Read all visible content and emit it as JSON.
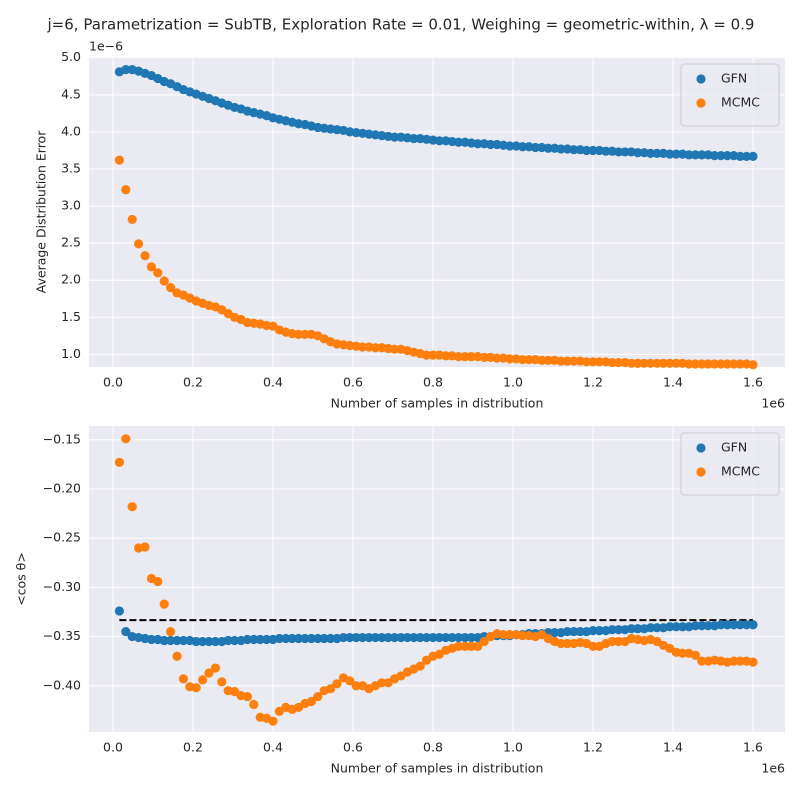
{
  "title": "j=6, Parametrization = SubTB, Exploration Rate = 0.01, Weighing = geometric-within, λ = 0.9",
  "chart_data": [
    {
      "type": "scatter",
      "xlabel": "Number of samples in distribution",
      "ylabel": "Average Distribution Error",
      "x_offset_label": "1e6",
      "y_offset_label": "1e−6",
      "xlim": [
        -0.06,
        1.68
      ],
      "ylim": [
        0.83,
        5.01
      ],
      "xticks": [
        {
          "value": 0,
          "label": "0.0"
        },
        0.2,
        0.4,
        0.6,
        0.8,
        {
          "value": 1,
          "label": "1.0"
        },
        1.2,
        1.4,
        1.6
      ],
      "yticks": [
        {
          "value": 1,
          "label": "1.0"
        },
        1.5,
        {
          "value": 2,
          "label": "2.0"
        },
        2.5,
        {
          "value": 3,
          "label": "3.0"
        },
        3.5,
        {
          "value": 4,
          "label": "4.0"
        },
        4.5,
        {
          "value": 5,
          "label": "5.0"
        }
      ],
      "grid": true,
      "legend": "upper right",
      "x": [
        0.016,
        0.032,
        0.048,
        0.064,
        0.08,
        0.096,
        0.112,
        0.128,
        0.144,
        0.16,
        0.176,
        0.192,
        0.208,
        0.224,
        0.24,
        0.256,
        0.272,
        0.288,
        0.304,
        0.32,
        0.336,
        0.352,
        0.368,
        0.384,
        0.4,
        0.416,
        0.432,
        0.448,
        0.464,
        0.48,
        0.496,
        0.512,
        0.528,
        0.544,
        0.56,
        0.576,
        0.592,
        0.608,
        0.624,
        0.64,
        0.656,
        0.672,
        0.688,
        0.704,
        0.72,
        0.736,
        0.752,
        0.768,
        0.784,
        0.8,
        0.816,
        0.832,
        0.848,
        0.864,
        0.88,
        0.896,
        0.912,
        0.928,
        0.944,
        0.96,
        0.976,
        0.992,
        1.008,
        1.024,
        1.04,
        1.056,
        1.072,
        1.088,
        1.104,
        1.12,
        1.136,
        1.152,
        1.168,
        1.184,
        1.2,
        1.216,
        1.232,
        1.248,
        1.264,
        1.28,
        1.296,
        1.312,
        1.328,
        1.344,
        1.36,
        1.376,
        1.392,
        1.408,
        1.424,
        1.44,
        1.456,
        1.472,
        1.488,
        1.504,
        1.52,
        1.536,
        1.552,
        1.568,
        1.584,
        1.6
      ],
      "series": [
        {
          "name": "GFN",
          "color": "#1f77b4",
          "values": [
            4.81,
            4.84,
            4.84,
            4.82,
            4.79,
            4.76,
            4.72,
            4.68,
            4.65,
            4.61,
            4.57,
            4.54,
            4.51,
            4.48,
            4.45,
            4.42,
            4.39,
            4.36,
            4.33,
            4.31,
            4.28,
            4.26,
            4.24,
            4.22,
            4.19,
            4.17,
            4.15,
            4.13,
            4.11,
            4.1,
            4.08,
            4.06,
            4.05,
            4.04,
            4.03,
            4.02,
            4.0,
            3.99,
            3.98,
            3.97,
            3.96,
            3.95,
            3.94,
            3.93,
            3.93,
            3.92,
            3.91,
            3.91,
            3.9,
            3.89,
            3.88,
            3.88,
            3.87,
            3.86,
            3.86,
            3.85,
            3.84,
            3.84,
            3.83,
            3.83,
            3.82,
            3.81,
            3.81,
            3.8,
            3.8,
            3.79,
            3.79,
            3.78,
            3.78,
            3.77,
            3.77,
            3.76,
            3.76,
            3.75,
            3.75,
            3.75,
            3.74,
            3.74,
            3.73,
            3.73,
            3.73,
            3.72,
            3.72,
            3.71,
            3.71,
            3.71,
            3.7,
            3.7,
            3.7,
            3.69,
            3.69,
            3.69,
            3.69,
            3.68,
            3.68,
            3.68,
            3.68,
            3.67,
            3.67,
            3.67
          ]
        },
        {
          "name": "MCMC",
          "color": "#ff7f0e",
          "values": [
            3.62,
            3.22,
            2.82,
            2.49,
            2.33,
            2.18,
            2.1,
            1.99,
            1.9,
            1.83,
            1.8,
            1.76,
            1.72,
            1.69,
            1.66,
            1.64,
            1.6,
            1.55,
            1.5,
            1.47,
            1.43,
            1.42,
            1.41,
            1.39,
            1.38,
            1.33,
            1.3,
            1.28,
            1.27,
            1.27,
            1.27,
            1.25,
            1.21,
            1.17,
            1.14,
            1.13,
            1.12,
            1.11,
            1.1,
            1.1,
            1.09,
            1.09,
            1.08,
            1.07,
            1.07,
            1.05,
            1.03,
            1.01,
            0.99,
            0.99,
            0.99,
            0.98,
            0.98,
            0.97,
            0.97,
            0.97,
            0.97,
            0.96,
            0.96,
            0.95,
            0.95,
            0.94,
            0.94,
            0.93,
            0.93,
            0.93,
            0.92,
            0.92,
            0.92,
            0.91,
            0.91,
            0.91,
            0.91,
            0.9,
            0.9,
            0.9,
            0.9,
            0.89,
            0.89,
            0.89,
            0.88,
            0.88,
            0.88,
            0.88,
            0.88,
            0.88,
            0.88,
            0.88,
            0.88,
            0.87,
            0.87,
            0.87,
            0.87,
            0.87,
            0.87,
            0.87,
            0.87,
            0.87,
            0.87,
            0.86
          ]
        }
      ]
    },
    {
      "type": "scatter",
      "xlabel": "Number of samples in distribution",
      "ylabel": "<cos θ>",
      "x_offset_label": "1e6",
      "xlim": [
        -0.06,
        1.68
      ],
      "ylim": [
        -0.447,
        -0.136
      ],
      "xticks": [
        {
          "value": 0,
          "label": "0.0"
        },
        0.2,
        0.4,
        0.6,
        0.8,
        {
          "value": 1,
          "label": "1.0"
        },
        1.2,
        1.4,
        1.6
      ],
      "yticks": [
        {
          "value": -0.4,
          "label": "−0.40"
        },
        {
          "value": -0.35,
          "label": "−0.35"
        },
        {
          "value": -0.3,
          "label": "−0.30"
        },
        {
          "value": -0.25,
          "label": "−0.25"
        },
        {
          "value": -0.2,
          "label": "−0.20"
        },
        {
          "value": -0.15,
          "label": "−0.15"
        }
      ],
      "grid": true,
      "legend": "upper right",
      "hline": {
        "value": -0.3333,
        "xrange": [
          0.016,
          1.6
        ],
        "color": "#000000",
        "style": "dashed"
      },
      "x": [
        0.016,
        0.032,
        0.048,
        0.064,
        0.08,
        0.096,
        0.112,
        0.128,
        0.144,
        0.16,
        0.176,
        0.192,
        0.208,
        0.224,
        0.24,
        0.256,
        0.272,
        0.288,
        0.304,
        0.32,
        0.336,
        0.352,
        0.368,
        0.384,
        0.4,
        0.416,
        0.432,
        0.448,
        0.464,
        0.48,
        0.496,
        0.512,
        0.528,
        0.544,
        0.56,
        0.576,
        0.592,
        0.608,
        0.624,
        0.64,
        0.656,
        0.672,
        0.688,
        0.704,
        0.72,
        0.736,
        0.752,
        0.768,
        0.784,
        0.8,
        0.816,
        0.832,
        0.848,
        0.864,
        0.88,
        0.896,
        0.912,
        0.928,
        0.944,
        0.96,
        0.976,
        0.992,
        1.008,
        1.024,
        1.04,
        1.056,
        1.072,
        1.088,
        1.104,
        1.12,
        1.136,
        1.152,
        1.168,
        1.184,
        1.2,
        1.216,
        1.232,
        1.248,
        1.264,
        1.28,
        1.296,
        1.312,
        1.328,
        1.344,
        1.36,
        1.376,
        1.392,
        1.408,
        1.424,
        1.44,
        1.456,
        1.472,
        1.488,
        1.504,
        1.52,
        1.536,
        1.552,
        1.568,
        1.584,
        1.6
      ],
      "series": [
        {
          "name": "GFN",
          "color": "#1f77b4",
          "values": [
            -0.324,
            -0.345,
            -0.35,
            -0.351,
            -0.352,
            -0.353,
            -0.353,
            -0.354,
            -0.354,
            -0.354,
            -0.354,
            -0.354,
            -0.355,
            -0.355,
            -0.355,
            -0.355,
            -0.355,
            -0.354,
            -0.354,
            -0.354,
            -0.353,
            -0.353,
            -0.353,
            -0.353,
            -0.353,
            -0.352,
            -0.352,
            -0.352,
            -0.352,
            -0.352,
            -0.352,
            -0.352,
            -0.352,
            -0.352,
            -0.352,
            -0.351,
            -0.351,
            -0.351,
            -0.351,
            -0.351,
            -0.351,
            -0.351,
            -0.351,
            -0.351,
            -0.351,
            -0.351,
            -0.351,
            -0.351,
            -0.351,
            -0.351,
            -0.351,
            -0.351,
            -0.351,
            -0.351,
            -0.351,
            -0.351,
            -0.351,
            -0.35,
            -0.35,
            -0.349,
            -0.349,
            -0.349,
            -0.348,
            -0.348,
            -0.347,
            -0.347,
            -0.347,
            -0.346,
            -0.346,
            -0.346,
            -0.345,
            -0.345,
            -0.345,
            -0.345,
            -0.344,
            -0.344,
            -0.344,
            -0.343,
            -0.343,
            -0.343,
            -0.342,
            -0.342,
            -0.342,
            -0.341,
            -0.341,
            -0.341,
            -0.34,
            -0.34,
            -0.34,
            -0.34,
            -0.339,
            -0.339,
            -0.339,
            -0.339,
            -0.338,
            -0.338,
            -0.338,
            -0.338,
            -0.338,
            -0.338
          ]
        },
        {
          "name": "MCMC",
          "color": "#ff7f0e",
          "values": [
            -0.173,
            -0.149,
            -0.218,
            -0.26,
            -0.259,
            -0.291,
            -0.294,
            -0.317,
            -0.345,
            -0.37,
            -0.393,
            -0.401,
            -0.402,
            -0.394,
            -0.387,
            -0.382,
            -0.396,
            -0.405,
            -0.406,
            -0.41,
            -0.411,
            -0.419,
            -0.432,
            -0.433,
            -0.436,
            -0.426,
            -0.422,
            -0.424,
            -0.422,
            -0.418,
            -0.416,
            -0.411,
            -0.405,
            -0.403,
            -0.398,
            -0.392,
            -0.395,
            -0.4,
            -0.4,
            -0.403,
            -0.4,
            -0.397,
            -0.397,
            -0.393,
            -0.39,
            -0.386,
            -0.383,
            -0.38,
            -0.374,
            -0.37,
            -0.368,
            -0.364,
            -0.362,
            -0.36,
            -0.36,
            -0.36,
            -0.36,
            -0.355,
            -0.35,
            -0.347,
            -0.348,
            -0.348,
            -0.348,
            -0.349,
            -0.349,
            -0.35,
            -0.348,
            -0.352,
            -0.355,
            -0.357,
            -0.357,
            -0.357,
            -0.356,
            -0.357,
            -0.36,
            -0.36,
            -0.357,
            -0.355,
            -0.355,
            -0.355,
            -0.352,
            -0.353,
            -0.354,
            -0.353,
            -0.355,
            -0.359,
            -0.362,
            -0.366,
            -0.367,
            -0.367,
            -0.369,
            -0.375,
            -0.375,
            -0.374,
            -0.375,
            -0.376,
            -0.375,
            -0.375,
            -0.375,
            -0.376
          ]
        }
      ]
    }
  ]
}
